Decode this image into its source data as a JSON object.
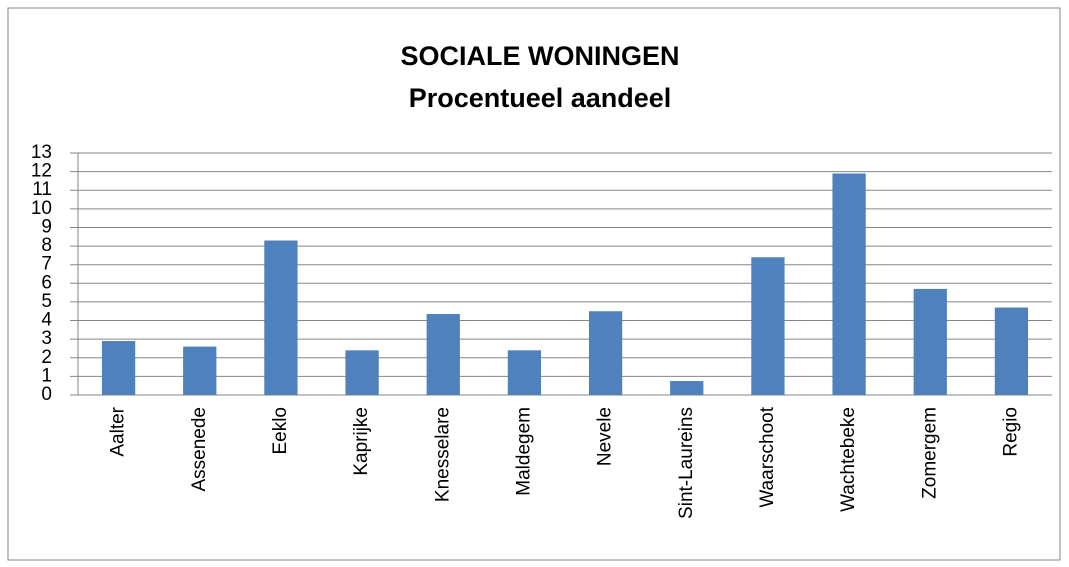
{
  "chart_data": {
    "type": "bar",
    "title": "SOCIALE WONINGEN",
    "subtitle": "Procentueel aandeel",
    "categories": [
      "Aalter",
      "Assenede",
      "Eeklo",
      "Kaprijke",
      "Knesselare",
      "Maldegem",
      "Nevele",
      "Sint-Laureins",
      "Waarschoot",
      "Wachtebeke",
      "Zomergem",
      "Regio"
    ],
    "values": [
      2.9,
      2.6,
      8.3,
      2.4,
      4.35,
      2.4,
      4.5,
      0.75,
      7.4,
      11.9,
      5.7,
      4.7
    ],
    "color": "#4f81bd",
    "ylim": [
      0,
      13
    ],
    "yticks": [
      0,
      1,
      2,
      3,
      4,
      5,
      6,
      7,
      8,
      9,
      10,
      11,
      12,
      13
    ],
    "grid": true
  }
}
